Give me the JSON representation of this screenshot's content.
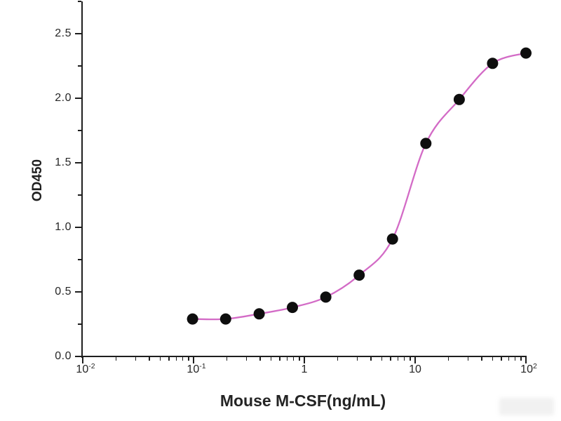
{
  "chart": {
    "y_title": "OD450",
    "x_title": "Mouse M-CSF(ng/mL)"
  },
  "chart_data": {
    "type": "scatter",
    "subtype": "dose-response curve with 4PL sigmoidal fit",
    "x_scale": "log10",
    "x": [
      0.098,
      0.195,
      0.391,
      0.781,
      1.563,
      3.125,
      6.25,
      12.5,
      25,
      50,
      100
    ],
    "y": [
      0.29,
      0.29,
      0.33,
      0.38,
      0.46,
      0.63,
      0.91,
      1.65,
      1.99,
      2.27,
      2.35
    ],
    "title": "",
    "xlabel": "Mouse M-CSF(ng/mL)",
    "ylabel": "OD450",
    "xlim": [
      0.01,
      100
    ],
    "ylim": [
      0,
      2.75
    ],
    "grid": false,
    "legend": "none",
    "x_ticks": [
      {
        "base": "10",
        "sup": "-2",
        "value": 0.01
      },
      {
        "base": "10",
        "sup": "-1",
        "value": 0.1
      },
      {
        "base": "1",
        "sup": "",
        "value": 1
      },
      {
        "base": "10",
        "sup": "",
        "value": 10
      },
      {
        "base": "10",
        "sup": "2",
        "value": 100
      }
    ],
    "y_ticks": [
      {
        "label": "0.0",
        "value": 0.0
      },
      {
        "label": "0.5",
        "value": 0.5
      },
      {
        "label": "1.0",
        "value": 1.0
      },
      {
        "label": "1.5",
        "value": 1.5
      },
      {
        "label": "2.0",
        "value": 2.0
      },
      {
        "label": "2.5",
        "value": 2.5
      }
    ],
    "y_minor_ticks": [
      0.25,
      0.75,
      1.25,
      1.75,
      2.25,
      2.75
    ],
    "colors": {
      "curve": "#d36bc6",
      "points": "#0e0e0e",
      "axis": "#1e1e1e",
      "background": "#ffffff"
    }
  }
}
